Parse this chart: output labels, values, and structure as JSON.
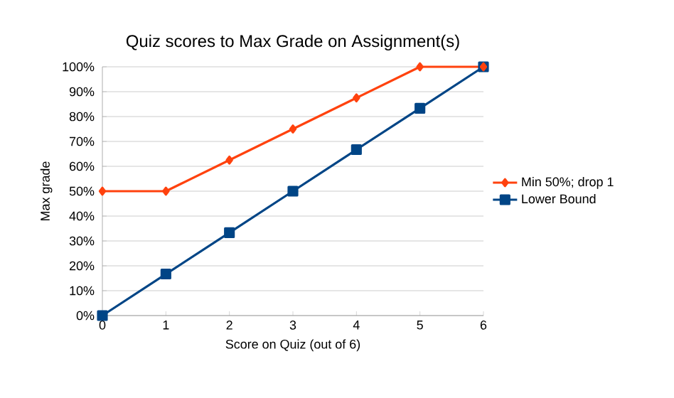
{
  "chart_data": {
    "type": "line",
    "title": "Quiz scores to Max Grade on Assignment(s)",
    "xlabel": "Score on Quiz (out of 6)",
    "ylabel": "Max grade",
    "x": [
      0,
      1,
      2,
      3,
      4,
      5,
      6
    ],
    "series": [
      {
        "name": "Min 50%; drop 1",
        "color": "#ff420e",
        "marker": "diamond",
        "values": [
          50,
          50,
          62.5,
          75,
          87.5,
          100,
          100
        ]
      },
      {
        "name": "Lower Bound",
        "color": "#004586",
        "marker": "square",
        "values": [
          0,
          16.7,
          33.3,
          50,
          66.7,
          83.3,
          100
        ]
      }
    ],
    "xlim": [
      0,
      6
    ],
    "xticks": [
      0,
      1,
      2,
      3,
      4,
      5,
      6
    ],
    "ylim": [
      0,
      100
    ],
    "yticks": [
      {
        "value": 0,
        "label": "0%"
      },
      {
        "value": 10,
        "label": "10%"
      },
      {
        "value": 20,
        "label": "20%"
      },
      {
        "value": 30,
        "label": "30%"
      },
      {
        "value": 40,
        "label": "40%"
      },
      {
        "value": 50,
        "label": "50%"
      },
      {
        "value": 60,
        "label": "60%"
      },
      {
        "value": 70,
        "label": "70%"
      },
      {
        "value": 80,
        "label": "80%"
      },
      {
        "value": 90,
        "label": "90%"
      },
      {
        "value": 100,
        "label": "100%"
      }
    ],
    "grid": "y",
    "legend": "right"
  }
}
